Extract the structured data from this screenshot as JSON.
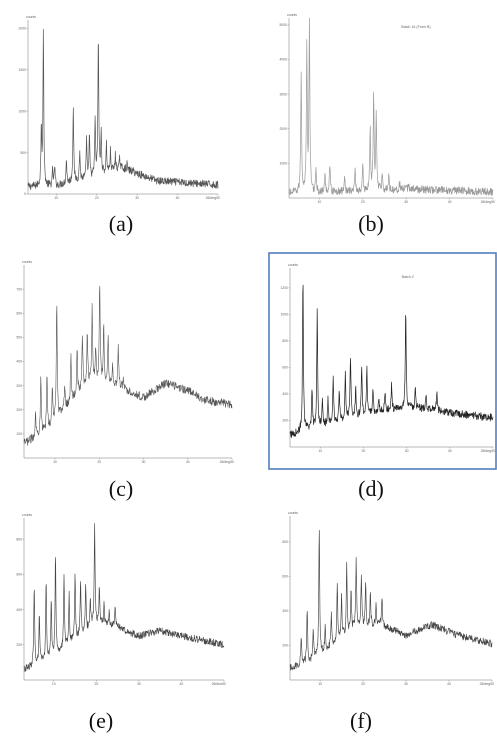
{
  "figure": {
    "panels": [
      {
        "caption": "(a)",
        "y_unit": "counts",
        "x_unit": "2θ/deg",
        "legend": "",
        "y_ticks": [
          "0",
          "500",
          "1000",
          "1500",
          "2000"
        ],
        "x_ticks": [
          "10",
          "20",
          "30",
          "40",
          "50"
        ]
      },
      {
        "caption": "(b)",
        "y_unit": "counts",
        "x_unit": "2θ/deg",
        "legend": "Batch 16 (Form B)",
        "y_ticks": [
          "1000",
          "2000",
          "3000",
          "4000",
          "5000"
        ],
        "x_ticks": [
          "10",
          "20",
          "30",
          "40",
          "50"
        ]
      },
      {
        "caption": "(c)",
        "y_unit": "counts",
        "x_unit": "2θ/deg",
        "legend": "",
        "y_ticks": [
          "100",
          "200",
          "300",
          "400",
          "500",
          "600",
          "700"
        ],
        "x_ticks": [
          "10",
          "20",
          "30",
          "40",
          "50"
        ]
      },
      {
        "caption": "(d)",
        "y_unit": "counts",
        "x_unit": "2θ/deg",
        "legend": "Batch 2",
        "y_ticks": [
          "200",
          "400",
          "600",
          "800",
          "1000",
          "1200"
        ],
        "x_ticks": [
          "10",
          "20",
          "30",
          "40",
          "50"
        ]
      },
      {
        "caption": "(e)",
        "y_unit": "counts",
        "x_unit": "2θ/deg",
        "legend": "",
        "y_ticks": [
          "200",
          "400",
          "600",
          "800"
        ],
        "x_ticks": [
          "10",
          "20",
          "30",
          "40",
          "50"
        ]
      },
      {
        "caption": "(f)",
        "y_unit": "counts",
        "x_unit": "2θ/deg",
        "legend": "",
        "y_ticks": [
          "200",
          "400",
          "600",
          "800"
        ],
        "x_ticks": [
          "10",
          "20",
          "30",
          "40",
          "50"
        ]
      }
    ]
  },
  "chart_data": [
    {
      "type": "line",
      "panel": "(a)",
      "title": "",
      "xlabel": "2θ/deg",
      "ylabel": "counts",
      "xlim": [
        3,
        50
      ],
      "ylim": [
        0,
        2100
      ],
      "grid": false,
      "baseline": {
        "x": [
          3,
          10,
          20,
          26,
          35,
          50
        ],
        "y": [
          90,
          100,
          220,
          320,
          160,
          110
        ]
      },
      "peaks": {
        "x": [
          6.3,
          6.8,
          9.1,
          9.6,
          12.5,
          14.2,
          15.8,
          17.5,
          18.2,
          19.6,
          20.4,
          21.1,
          22.4,
          23.4,
          24.6,
          25.7,
          27.5,
          29,
          31
        ],
        "y": [
          830,
          1960,
          290,
          330,
          420,
          1080,
          520,
          660,
          700,
          880,
          1940,
          720,
          600,
          520,
          470,
          430,
          360,
          280,
          230
        ]
      },
      "series": [
        {
          "values": "see x/y",
          "color": "#555555"
        }
      ]
    },
    {
      "type": "line",
      "panel": "(b)",
      "title": "",
      "xlabel": "2θ/deg",
      "ylabel": "counts",
      "xlim": [
        3,
        50
      ],
      "ylim": [
        0,
        5200
      ],
      "grid": false,
      "baseline": {
        "x": [
          3,
          10,
          20,
          30,
          50
        ],
        "y": [
          150,
          160,
          200,
          260,
          180
        ]
      },
      "peaks": {
        "x": [
          5.8,
          7.1,
          7.7,
          9.2,
          11.3,
          12.4,
          15.8,
          18.2,
          20,
          21.7,
          22.5,
          23.1,
          24.5,
          26,
          28.5,
          30.6
        ],
        "y": [
          3600,
          4300,
          5050,
          750,
          650,
          1000,
          700,
          850,
          900,
          1950,
          3050,
          2400,
          700,
          620,
          420,
          380
        ]
      },
      "series": [
        {
          "values": "see x/y",
          "color": "#9a9a9a"
        }
      ]
    },
    {
      "type": "line",
      "panel": "(c)",
      "title": "",
      "xlabel": "2θ/deg",
      "ylabel": "counts",
      "xlim": [
        3,
        50
      ],
      "ylim": [
        0,
        800
      ],
      "grid": false,
      "baseline": {
        "x": [
          3,
          8,
          12,
          18,
          24,
          30,
          35,
          40,
          44,
          50
        ],
        "y": [
          60,
          110,
          200,
          320,
          300,
          250,
          310,
          280,
          240,
          220
        ]
      },
      "peaks": {
        "x": [
          5.6,
          6.8,
          8.2,
          9.4,
          10.4,
          12.2,
          13.6,
          15,
          16.2,
          17.3,
          18.4,
          19.2,
          20.1,
          21,
          22,
          23,
          24.3,
          25.4
        ],
        "y": [
          190,
          350,
          350,
          280,
          670,
          300,
          430,
          460,
          510,
          520,
          620,
          450,
          740,
          550,
          500,
          380,
          460,
          330
        ]
      },
      "series": [
        {
          "values": "see x/y",
          "color": "#555555"
        }
      ]
    },
    {
      "type": "line",
      "panel": "(d)",
      "title": "",
      "xlabel": "2θ/deg",
      "ylabel": "counts",
      "xlim": [
        3,
        50
      ],
      "ylim": [
        0,
        1350
      ],
      "grid": false,
      "baseline": {
        "x": [
          3,
          8,
          20,
          30,
          36,
          42,
          50
        ],
        "y": [
          90,
          140,
          240,
          300,
          280,
          250,
          220
        ]
      },
      "peaks": {
        "x": [
          6,
          8.1,
          9.3,
          10.5,
          11.8,
          13,
          14.4,
          15.8,
          17,
          18.2,
          19.6,
          20.8,
          22.2,
          23.6,
          25,
          26.5,
          29.8,
          32,
          34.5,
          37
        ],
        "y": [
          1270,
          450,
          1030,
          380,
          350,
          510,
          430,
          560,
          700,
          450,
          620,
          580,
          440,
          360,
          420,
          460,
          1050,
          450,
          400,
          420
        ]
      },
      "series": [
        {
          "values": "see x/y",
          "color": "#222222"
        }
      ]
    },
    {
      "type": "line",
      "panel": "(e)",
      "title": "",
      "xlabel": "2θ/deg",
      "ylabel": "counts",
      "xlim": [
        3,
        50
      ],
      "ylim": [
        0,
        920
      ],
      "grid": false,
      "baseline": {
        "x": [
          3,
          9,
          15,
          20,
          25,
          30,
          35,
          42,
          50
        ],
        "y": [
          60,
          120,
          230,
          320,
          300,
          250,
          280,
          240,
          200
        ]
      },
      "peaks": {
        "x": [
          5.4,
          6.6,
          8.2,
          9.4,
          10.4,
          12.4,
          13.6,
          15,
          16.3,
          17.5,
          18.6,
          19.6,
          20.7,
          21.8,
          23,
          24.4
        ],
        "y": [
          530,
          360,
          560,
          440,
          720,
          580,
          480,
          600,
          560,
          530,
          460,
          880,
          520,
          430,
          390,
          420
        ]
      },
      "series": [
        {
          "values": "see x/y",
          "color": "#444444"
        }
      ]
    },
    {
      "type": "line",
      "panel": "(f)",
      "title": "",
      "xlabel": "2θ/deg",
      "ylabel": "counts",
      "xlim": [
        3,
        50
      ],
      "ylim": [
        0,
        950
      ],
      "grid": false,
      "baseline": {
        "x": [
          3,
          8,
          13,
          18,
          24,
          30,
          36,
          42,
          50
        ],
        "y": [
          70,
          110,
          200,
          300,
          320,
          260,
          320,
          260,
          210
        ]
      },
      "peaks": {
        "x": [
          5.6,
          7,
          8.4,
          9.8,
          11.2,
          12.6,
          14,
          15,
          16.2,
          17.2,
          18.4,
          19.6,
          20.6,
          21.7,
          23,
          24.4
        ],
        "y": [
          250,
          420,
          300,
          880,
          320,
          380,
          560,
          500,
          660,
          520,
          690,
          620,
          560,
          500,
          440,
          470
        ]
      },
      "series": [
        {
          "values": "see x/y",
          "color": "#444444"
        }
      ]
    }
  ]
}
